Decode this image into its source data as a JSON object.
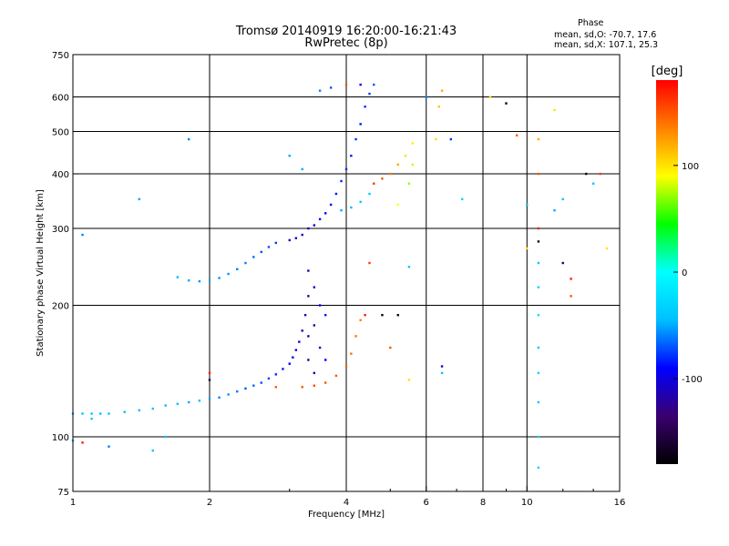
{
  "header": {
    "title_line1": "Tromsø 20140919 16:20:00-16:21:43",
    "title_line2": "RwPretec (8p)",
    "phase_heading": "Phase",
    "phase_line1": "mean, sd,O: -70.7, 17.6",
    "phase_line2": "mean, sd,X: 107.1, 25.3"
  },
  "chart_data": {
    "type": "scatter",
    "title": "Tromsø 20140919 16:20:00-16:21:43",
    "subtitle": "RwPretec (8p)",
    "xlabel": "Frequency [MHz]",
    "ylabel": "Stationary phase Virtual Height [km]",
    "xscale": "log",
    "yscale": "log",
    "xlim": [
      1,
      16
    ],
    "ylim": [
      75,
      750
    ],
    "xticks": [
      {
        "value": 1,
        "label": "1"
      },
      {
        "value": 2,
        "label": "2"
      },
      {
        "value": 4,
        "label": "4"
      },
      {
        "value": 6,
        "label": "6"
      },
      {
        "value": 8,
        "label": "8"
      },
      {
        "value": 10,
        "label": "10"
      },
      {
        "value": 16,
        "label": "16"
      }
    ],
    "yticks": [
      {
        "value": 75,
        "label": "75"
      },
      {
        "value": 100,
        "label": "100"
      },
      {
        "value": 200,
        "label": "200"
      },
      {
        "value": 300,
        "label": "300"
      },
      {
        "value": 400,
        "label": "400"
      },
      {
        "value": 500,
        "label": "500"
      },
      {
        "value": 600,
        "label": "600"
      },
      {
        "value": 750,
        "label": "750"
      }
    ],
    "grid": true,
    "colorbar": {
      "label": "[deg]",
      "range": [
        -180,
        180
      ],
      "ticks": [
        {
          "value": 100,
          "label": "100"
        },
        {
          "value": 0,
          "label": "0"
        },
        {
          "value": -100,
          "label": "-100"
        }
      ],
      "colormap": [
        "#000000",
        "#3a006f",
        "#0000ff",
        "#00bfff",
        "#00ffff",
        "#00ff00",
        "#ffff00",
        "#ff8000",
        "#ff0000"
      ]
    },
    "points": [
      {
        "f": 1.0,
        "h": 113,
        "p": -40
      },
      {
        "f": 1.05,
        "h": 113,
        "p": -40
      },
      {
        "f": 1.1,
        "h": 113,
        "p": -38
      },
      {
        "f": 1.15,
        "h": 113,
        "p": -42
      },
      {
        "f": 1.2,
        "h": 113,
        "p": -40
      },
      {
        "f": 1.3,
        "h": 114,
        "p": -40
      },
      {
        "f": 1.4,
        "h": 115,
        "p": -45
      },
      {
        "f": 1.5,
        "h": 116,
        "p": -40
      },
      {
        "f": 1.6,
        "h": 118,
        "p": -45
      },
      {
        "f": 1.7,
        "h": 119,
        "p": -40
      },
      {
        "f": 1.8,
        "h": 120,
        "p": -50
      },
      {
        "f": 1.9,
        "h": 121,
        "p": -45
      },
      {
        "f": 2.0,
        "h": 122,
        "p": -50
      },
      {
        "f": 2.1,
        "h": 123,
        "p": -60
      },
      {
        "f": 2.2,
        "h": 125,
        "p": -55
      },
      {
        "f": 2.3,
        "h": 127,
        "p": -60
      },
      {
        "f": 2.4,
        "h": 129,
        "p": -70
      },
      {
        "f": 2.5,
        "h": 131,
        "p": -65
      },
      {
        "f": 2.6,
        "h": 133,
        "p": -70
      },
      {
        "f": 2.7,
        "h": 136,
        "p": -75
      },
      {
        "f": 2.8,
        "h": 139,
        "p": -80
      },
      {
        "f": 2.9,
        "h": 143,
        "p": -85
      },
      {
        "f": 3.0,
        "h": 147,
        "p": -90
      },
      {
        "f": 3.05,
        "h": 152,
        "p": -95
      },
      {
        "f": 3.1,
        "h": 158,
        "p": -100
      },
      {
        "f": 3.15,
        "h": 165,
        "p": -105
      },
      {
        "f": 3.2,
        "h": 175,
        "p": -110
      },
      {
        "f": 3.25,
        "h": 190,
        "p": -115
      },
      {
        "f": 3.3,
        "h": 210,
        "p": -120
      },
      {
        "f": 3.3,
        "h": 240,
        "p": -115
      },
      {
        "f": 3.3,
        "h": 150,
        "p": -125
      },
      {
        "f": 3.3,
        "h": 170,
        "p": -120
      },
      {
        "f": 3.4,
        "h": 140,
        "p": -110
      },
      {
        "f": 3.4,
        "h": 180,
        "p": -115
      },
      {
        "f": 3.4,
        "h": 220,
        "p": -105
      },
      {
        "f": 3.5,
        "h": 160,
        "p": -100
      },
      {
        "f": 3.5,
        "h": 200,
        "p": -95
      },
      {
        "f": 3.6,
        "h": 150,
        "p": -90
      },
      {
        "f": 3.6,
        "h": 190,
        "p": -85
      },
      {
        "f": 3.2,
        "h": 130,
        "p": 150
      },
      {
        "f": 3.4,
        "h": 131,
        "p": 155
      },
      {
        "f": 3.6,
        "h": 133,
        "p": 150
      },
      {
        "f": 3.8,
        "h": 138,
        "p": 150
      },
      {
        "f": 4.0,
        "h": 145,
        "p": 145
      },
      {
        "f": 4.1,
        "h": 155,
        "p": 140
      },
      {
        "f": 4.2,
        "h": 170,
        "p": 140
      },
      {
        "f": 4.3,
        "h": 185,
        "p": 135
      },
      {
        "f": 1.7,
        "h": 232,
        "p": -45
      },
      {
        "f": 1.8,
        "h": 228,
        "p": -50
      },
      {
        "f": 1.9,
        "h": 227,
        "p": -55
      },
      {
        "f": 2.0,
        "h": 228,
        "p": -50
      },
      {
        "f": 2.1,
        "h": 231,
        "p": -55
      },
      {
        "f": 2.2,
        "h": 236,
        "p": -55
      },
      {
        "f": 2.3,
        "h": 242,
        "p": -60
      },
      {
        "f": 2.4,
        "h": 250,
        "p": -60
      },
      {
        "f": 2.5,
        "h": 258,
        "p": -65
      },
      {
        "f": 2.6,
        "h": 265,
        "p": -70
      },
      {
        "f": 2.7,
        "h": 272,
        "p": -70
      },
      {
        "f": 2.8,
        "h": 278,
        "p": -75
      },
      {
        "f": 3.0,
        "h": 282,
        "p": -110
      },
      {
        "f": 3.1,
        "h": 285,
        "p": -115
      },
      {
        "f": 3.2,
        "h": 290,
        "p": -110
      },
      {
        "f": 3.3,
        "h": 300,
        "p": -105
      },
      {
        "f": 3.4,
        "h": 305,
        "p": -100
      },
      {
        "f": 3.5,
        "h": 315,
        "p": -95
      },
      {
        "f": 3.6,
        "h": 325,
        "p": -90
      },
      {
        "f": 3.7,
        "h": 340,
        "p": -90
      },
      {
        "f": 3.8,
        "h": 360,
        "p": -85
      },
      {
        "f": 3.9,
        "h": 385,
        "p": -80
      },
      {
        "f": 4.0,
        "h": 410,
        "p": -80
      },
      {
        "f": 4.1,
        "h": 440,
        "p": -85
      },
      {
        "f": 4.2,
        "h": 480,
        "p": -80
      },
      {
        "f": 4.3,
        "h": 520,
        "p": -85
      },
      {
        "f": 4.4,
        "h": 570,
        "p": -80
      },
      {
        "f": 4.5,
        "h": 610,
        "p": -75
      },
      {
        "f": 4.6,
        "h": 640,
        "p": -70
      },
      {
        "f": 3.9,
        "h": 330,
        "p": -50
      },
      {
        "f": 4.1,
        "h": 335,
        "p": -45
      },
      {
        "f": 4.3,
        "h": 345,
        "p": -40
      },
      {
        "f": 4.5,
        "h": 360,
        "p": -35
      },
      {
        "f": 4.6,
        "h": 380,
        "p": 160
      },
      {
        "f": 4.8,
        "h": 390,
        "p": 150
      },
      {
        "f": 5.0,
        "h": 400,
        "p": 140
      },
      {
        "f": 5.2,
        "h": 420,
        "p": 120
      },
      {
        "f": 5.4,
        "h": 440,
        "p": 100
      },
      {
        "f": 5.6,
        "h": 470,
        "p": 95
      },
      {
        "f": 5.2,
        "h": 340,
        "p": 90
      },
      {
        "f": 5.5,
        "h": 380,
        "p": 70
      },
      {
        "f": 5.6,
        "h": 420,
        "p": 80
      },
      {
        "f": 6.3,
        "h": 480,
        "p": 100
      },
      {
        "f": 6.4,
        "h": 570,
        "p": 110
      },
      {
        "f": 6.5,
        "h": 620,
        "p": 120
      },
      {
        "f": 3.5,
        "h": 620,
        "p": -60
      },
      {
        "f": 3.7,
        "h": 630,
        "p": -70
      },
      {
        "f": 4.0,
        "h": 640,
        "p": 150
      },
      {
        "f": 4.3,
        "h": 640,
        "p": -90
      },
      {
        "f": 10.6,
        "h": 250,
        "p": -40
      },
      {
        "f": 10.6,
        "h": 220,
        "p": -30
      },
      {
        "f": 10.6,
        "h": 190,
        "p": -20
      },
      {
        "f": 10.6,
        "h": 160,
        "p": -40
      },
      {
        "f": 10.6,
        "h": 140,
        "p": -30
      },
      {
        "f": 10.6,
        "h": 120,
        "p": -40
      },
      {
        "f": 10.6,
        "h": 100,
        "p": -30
      },
      {
        "f": 10.6,
        "h": 85,
        "p": -30
      },
      {
        "f": 10.6,
        "h": 480,
        "p": 120
      },
      {
        "f": 10.6,
        "h": 400,
        "p": 150
      },
      {
        "f": 10.6,
        "h": 300,
        "p": 170
      },
      {
        "f": 10.6,
        "h": 280,
        "p": -170
      },
      {
        "f": 9.5,
        "h": 490,
        "p": 150
      },
      {
        "f": 10.0,
        "h": 340,
        "p": -40
      },
      {
        "f": 10.0,
        "h": 270,
        "p": 100
      },
      {
        "f": 11.5,
        "h": 560,
        "p": 100
      },
      {
        "f": 11.5,
        "h": 330,
        "p": -50
      },
      {
        "f": 12.0,
        "h": 350,
        "p": -40
      },
      {
        "f": 12.0,
        "h": 250,
        "p": -150
      },
      {
        "f": 12.5,
        "h": 230,
        "p": 170
      },
      {
        "f": 12.5,
        "h": 210,
        "p": 150
      },
      {
        "f": 13.5,
        "h": 400,
        "p": -170
      },
      {
        "f": 14.5,
        "h": 400,
        "p": 160
      },
      {
        "f": 15.0,
        "h": 270,
        "p": 100
      },
      {
        "f": 14.0,
        "h": 380,
        "p": -40
      },
      {
        "f": 9.0,
        "h": 580,
        "p": -170
      },
      {
        "f": 8.3,
        "h": 600,
        "p": 100
      },
      {
        "f": 7.2,
        "h": 350,
        "p": -30
      },
      {
        "f": 6.5,
        "h": 145,
        "p": -110
      },
      {
        "f": 6.5,
        "h": 140,
        "p": -40
      },
      {
        "f": 5.5,
        "h": 135,
        "p": 100
      },
      {
        "f": 5.5,
        "h": 245,
        "p": -40
      },
      {
        "f": 4.5,
        "h": 250,
        "p": 160
      },
      {
        "f": 4.8,
        "h": 190,
        "p": -170
      },
      {
        "f": 1.05,
        "h": 97,
        "p": 170
      },
      {
        "f": 1.2,
        "h": 95,
        "p": -60
      },
      {
        "f": 1.5,
        "h": 93,
        "p": -40
      },
      {
        "f": 1.6,
        "h": 100,
        "p": -40
      },
      {
        "f": 1.05,
        "h": 290,
        "p": -60
      },
      {
        "f": 1.4,
        "h": 350,
        "p": -50
      },
      {
        "f": 1.8,
        "h": 480,
        "p": -60
      },
      {
        "f": 1.0,
        "h": 98,
        "p": -40
      },
      {
        "f": 1.1,
        "h": 110,
        "p": -40
      },
      {
        "f": 2.0,
        "h": 135,
        "p": -150
      },
      {
        "f": 2.0,
        "h": 140,
        "p": 170
      },
      {
        "f": 2.8,
        "h": 130,
        "p": 150
      },
      {
        "f": 3.2,
        "h": 410,
        "p": -50
      },
      {
        "f": 3.0,
        "h": 440,
        "p": -50
      },
      {
        "f": 4.4,
        "h": 190,
        "p": 170
      },
      {
        "f": 5.2,
        "h": 190,
        "p": -170
      },
      {
        "f": 5.0,
        "h": 160,
        "p": 150
      },
      {
        "f": 6.0,
        "h": 600,
        "p": -60
      },
      {
        "f": 6.8,
        "h": 480,
        "p": -80
      }
    ]
  }
}
